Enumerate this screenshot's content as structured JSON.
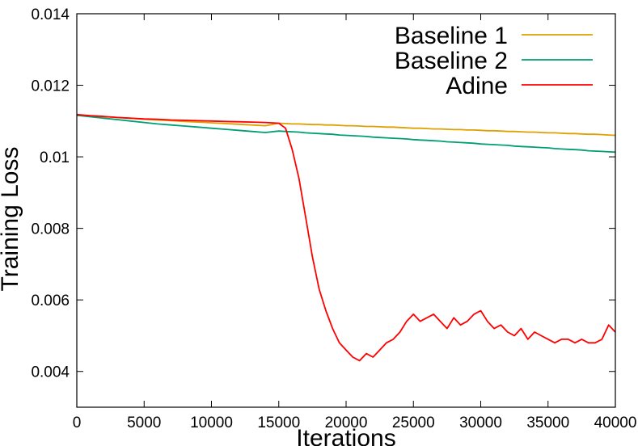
{
  "chart_data": {
    "type": "line",
    "title": "",
    "xlabel": "Iterations",
    "ylabel": "Training Loss",
    "xlim": [
      0,
      40000
    ],
    "ylim": [
      0.003,
      0.014
    ],
    "xticks": [
      0,
      5000,
      10000,
      15000,
      20000,
      25000,
      30000,
      35000,
      40000
    ],
    "xtick_labels": [
      "0",
      "5000",
      "10000",
      "15000",
      "20000",
      "25000",
      "30000",
      "35000",
      "40000"
    ],
    "yticks": [
      0.004,
      0.006,
      0.008,
      0.01,
      0.012,
      0.014
    ],
    "ytick_labels": [
      "0.004",
      "0.006",
      "0.008",
      "0.01",
      "0.012",
      "0.014"
    ],
    "grid": false,
    "legend_position": "top-right",
    "x": [
      0,
      1000,
      2000,
      3000,
      4000,
      5000,
      6000,
      7000,
      8000,
      9000,
      10000,
      11000,
      12000,
      13000,
      14000,
      15000,
      15500,
      16000,
      16500,
      17000,
      17500,
      18000,
      18500,
      19000,
      19500,
      20000,
      20500,
      21000,
      21500,
      22000,
      22500,
      23000,
      23500,
      24000,
      24500,
      25000,
      25500,
      26000,
      26500,
      27000,
      27500,
      28000,
      28500,
      29000,
      29500,
      30000,
      30500,
      31000,
      31500,
      32000,
      32500,
      33000,
      33500,
      34000,
      34500,
      35000,
      35500,
      36000,
      36500,
      37000,
      37500,
      38000,
      38500,
      39000,
      39500,
      40000
    ],
    "series": [
      {
        "name": "Baseline 1",
        "color": "#dfa000",
        "values": [
          0.01116,
          0.01114,
          0.01112,
          0.0111,
          0.01108,
          0.01105,
          0.01103,
          0.01101,
          0.01099,
          0.01097,
          0.01095,
          0.01093,
          0.01091,
          0.01089,
          0.01087,
          0.01094,
          0.01093,
          0.01092,
          0.01092,
          0.01091,
          0.0109,
          0.0109,
          0.01089,
          0.01089,
          0.01088,
          0.01087,
          0.01087,
          0.01086,
          0.01085,
          0.01085,
          0.01084,
          0.01083,
          0.01083,
          0.01082,
          0.01081,
          0.0108,
          0.0108,
          0.01079,
          0.01078,
          0.01078,
          0.01077,
          0.01076,
          0.01076,
          0.01075,
          0.01075,
          0.01074,
          0.01073,
          0.01073,
          0.01072,
          0.01071,
          0.01071,
          0.0107,
          0.01069,
          0.01069,
          0.01068,
          0.01067,
          0.01067,
          0.01066,
          0.01065,
          0.01065,
          0.01064,
          0.01063,
          0.01063,
          0.01062,
          0.01061,
          0.0106
        ]
      },
      {
        "name": "Baseline 2",
        "color": "#009e73",
        "values": [
          0.01116,
          0.01112,
          0.01108,
          0.01104,
          0.011,
          0.01096,
          0.01092,
          0.01089,
          0.01086,
          0.01083,
          0.0108,
          0.01077,
          0.01074,
          0.01071,
          0.01068,
          0.01072,
          0.01071,
          0.0107,
          0.01069,
          0.01067,
          0.01066,
          0.01065,
          0.01064,
          0.01063,
          0.01061,
          0.0106,
          0.01059,
          0.01058,
          0.01057,
          0.01055,
          0.01054,
          0.01053,
          0.01052,
          0.01051,
          0.0105,
          0.01048,
          0.01047,
          0.01046,
          0.01045,
          0.01044,
          0.01042,
          0.01041,
          0.0104,
          0.01039,
          0.01038,
          0.01036,
          0.01035,
          0.01034,
          0.01033,
          0.01032,
          0.0103,
          0.01029,
          0.01028,
          0.01027,
          0.01026,
          0.01025,
          0.01023,
          0.01022,
          0.01021,
          0.0102,
          0.01019,
          0.01017,
          0.01016,
          0.01015,
          0.01014,
          0.01013
        ]
      },
      {
        "name": "Adine",
        "color": "#ff0000",
        "values": [
          0.01118,
          0.01115,
          0.01113,
          0.0111,
          0.01108,
          0.01106,
          0.01105,
          0.01103,
          0.01102,
          0.01101,
          0.011,
          0.01099,
          0.01098,
          0.01097,
          0.01096,
          0.01094,
          0.0108,
          0.0102,
          0.0094,
          0.0083,
          0.0072,
          0.0063,
          0.0057,
          0.0052,
          0.0048,
          0.0046,
          0.0044,
          0.0043,
          0.0045,
          0.0044,
          0.0046,
          0.0048,
          0.0049,
          0.0051,
          0.0054,
          0.0056,
          0.0054,
          0.0055,
          0.0056,
          0.0054,
          0.0052,
          0.0055,
          0.0053,
          0.0054,
          0.0056,
          0.0057,
          0.0054,
          0.0052,
          0.0053,
          0.0051,
          0.005,
          0.0052,
          0.0049,
          0.0051,
          0.005,
          0.0049,
          0.0048,
          0.0049,
          0.0049,
          0.0048,
          0.0049,
          0.0048,
          0.0048,
          0.0049,
          0.0053,
          0.0051
        ]
      }
    ]
  }
}
